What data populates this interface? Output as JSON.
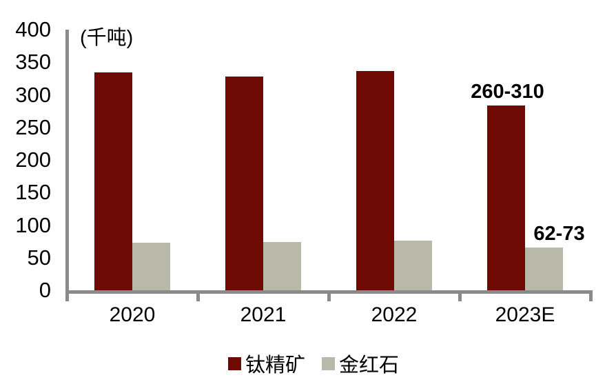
{
  "chart_data": {
    "type": "bar",
    "unit_label": "(千吨)",
    "categories": [
      "2020",
      "2021",
      "2022",
      "2023E"
    ],
    "series": [
      {
        "key": "titanium-concentrate",
        "name": "钛精矿",
        "color": "#6E0903",
        "values": [
          334,
          328,
          337,
          284
        ]
      },
      {
        "key": "rutile",
        "name": "金红石",
        "color": "#B8B9A9",
        "values": [
          73,
          74,
          76,
          66
        ]
      }
    ],
    "annotations": [
      {
        "text": "260-310",
        "series_index": 0,
        "category_index": 3,
        "dx": 2
      },
      {
        "text": "62-73",
        "series_index": 1,
        "category_index": 3,
        "dx": 22
      }
    ],
    "yticks": [
      0,
      50,
      100,
      150,
      200,
      250,
      300,
      350,
      400
    ],
    "ylim": [
      0,
      400
    ],
    "grid": false,
    "legend_position": "bottom",
    "axis_color": "#8A8A8A",
    "text_color": "#000000"
  }
}
